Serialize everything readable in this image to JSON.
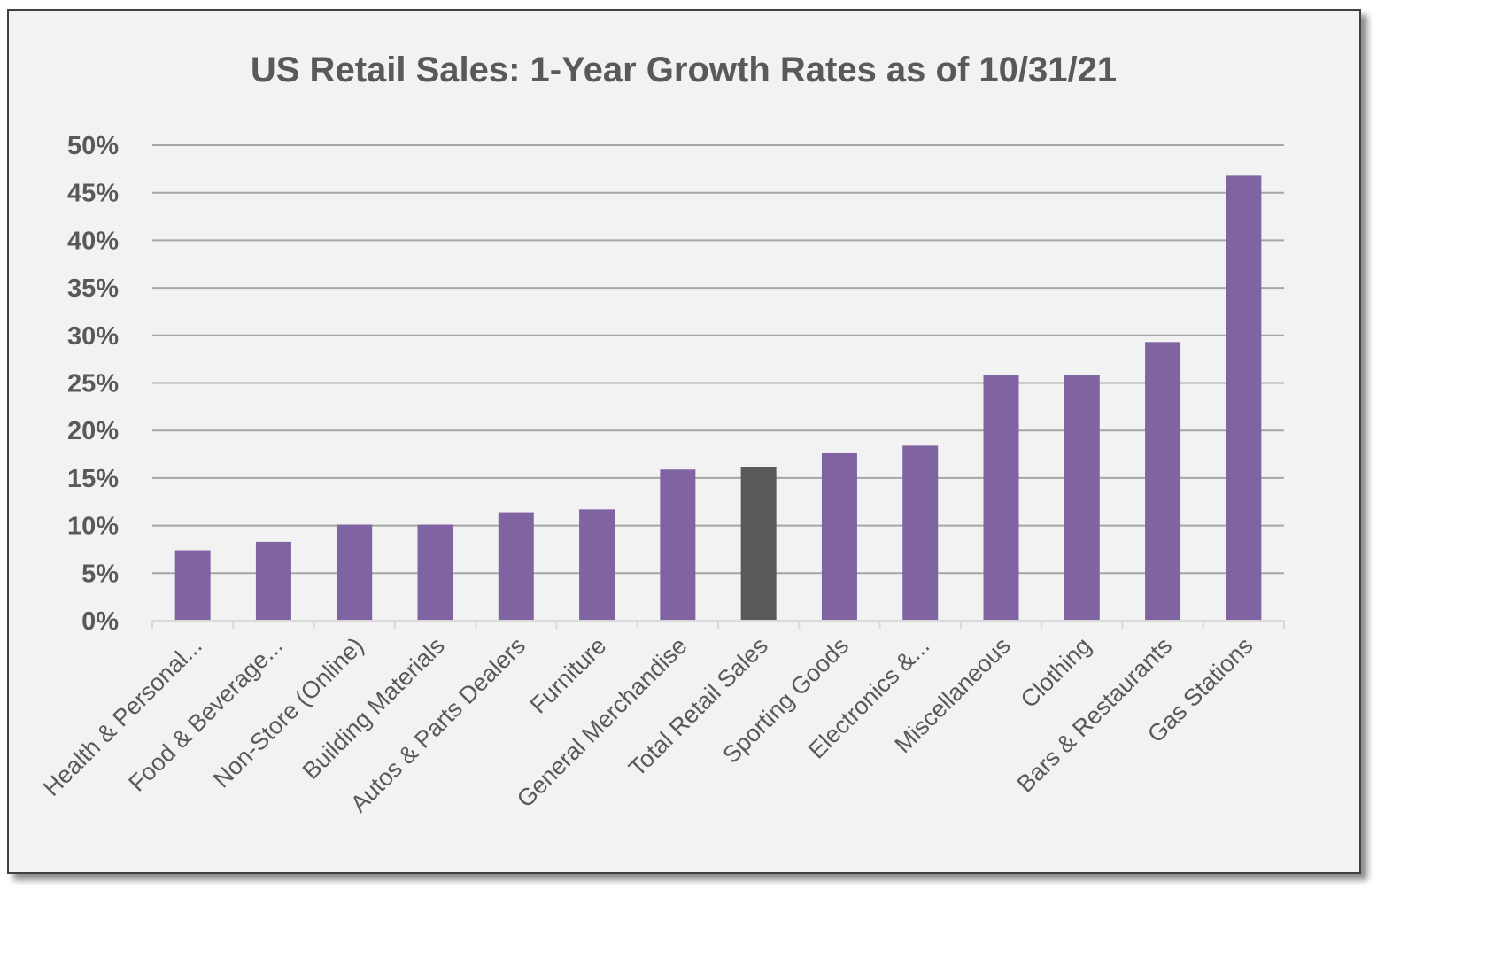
{
  "chart_data": {
    "type": "bar",
    "title": "US Retail Sales: 1-Year Growth Rates as of 10/31/21",
    "xlabel": "",
    "ylabel": "",
    "ylim": [
      0,
      50
    ],
    "y_ticks": [
      "0%",
      "5%",
      "10%",
      "15%",
      "20%",
      "25%",
      "30%",
      "35%",
      "40%",
      "45%",
      "50%"
    ],
    "categories": [
      "Health & Personal...",
      "Food & Beverage...",
      "Non-Store (Online)",
      "Building Materials",
      "Autos & Parts Dealers",
      "Furniture",
      "General Merchandise",
      "Total Retail Sales",
      "Sporting Goods",
      "Electronics &...",
      "Miscellaneous",
      "Clothing",
      "Bars & Restaurants",
      "Gas Stations"
    ],
    "values": [
      7.4,
      8.3,
      10.1,
      10.1,
      11.4,
      11.7,
      15.9,
      16.2,
      17.6,
      18.4,
      25.8,
      25.8,
      29.3,
      46.8
    ],
    "highlight_category": "Total Retail Sales",
    "grid": true,
    "legend": "none",
    "colors": {
      "bar": "#8064a2",
      "highlight": "#595959",
      "grid": "#a6a6a6",
      "text": "#595959",
      "background": "#f2f2f2"
    }
  }
}
